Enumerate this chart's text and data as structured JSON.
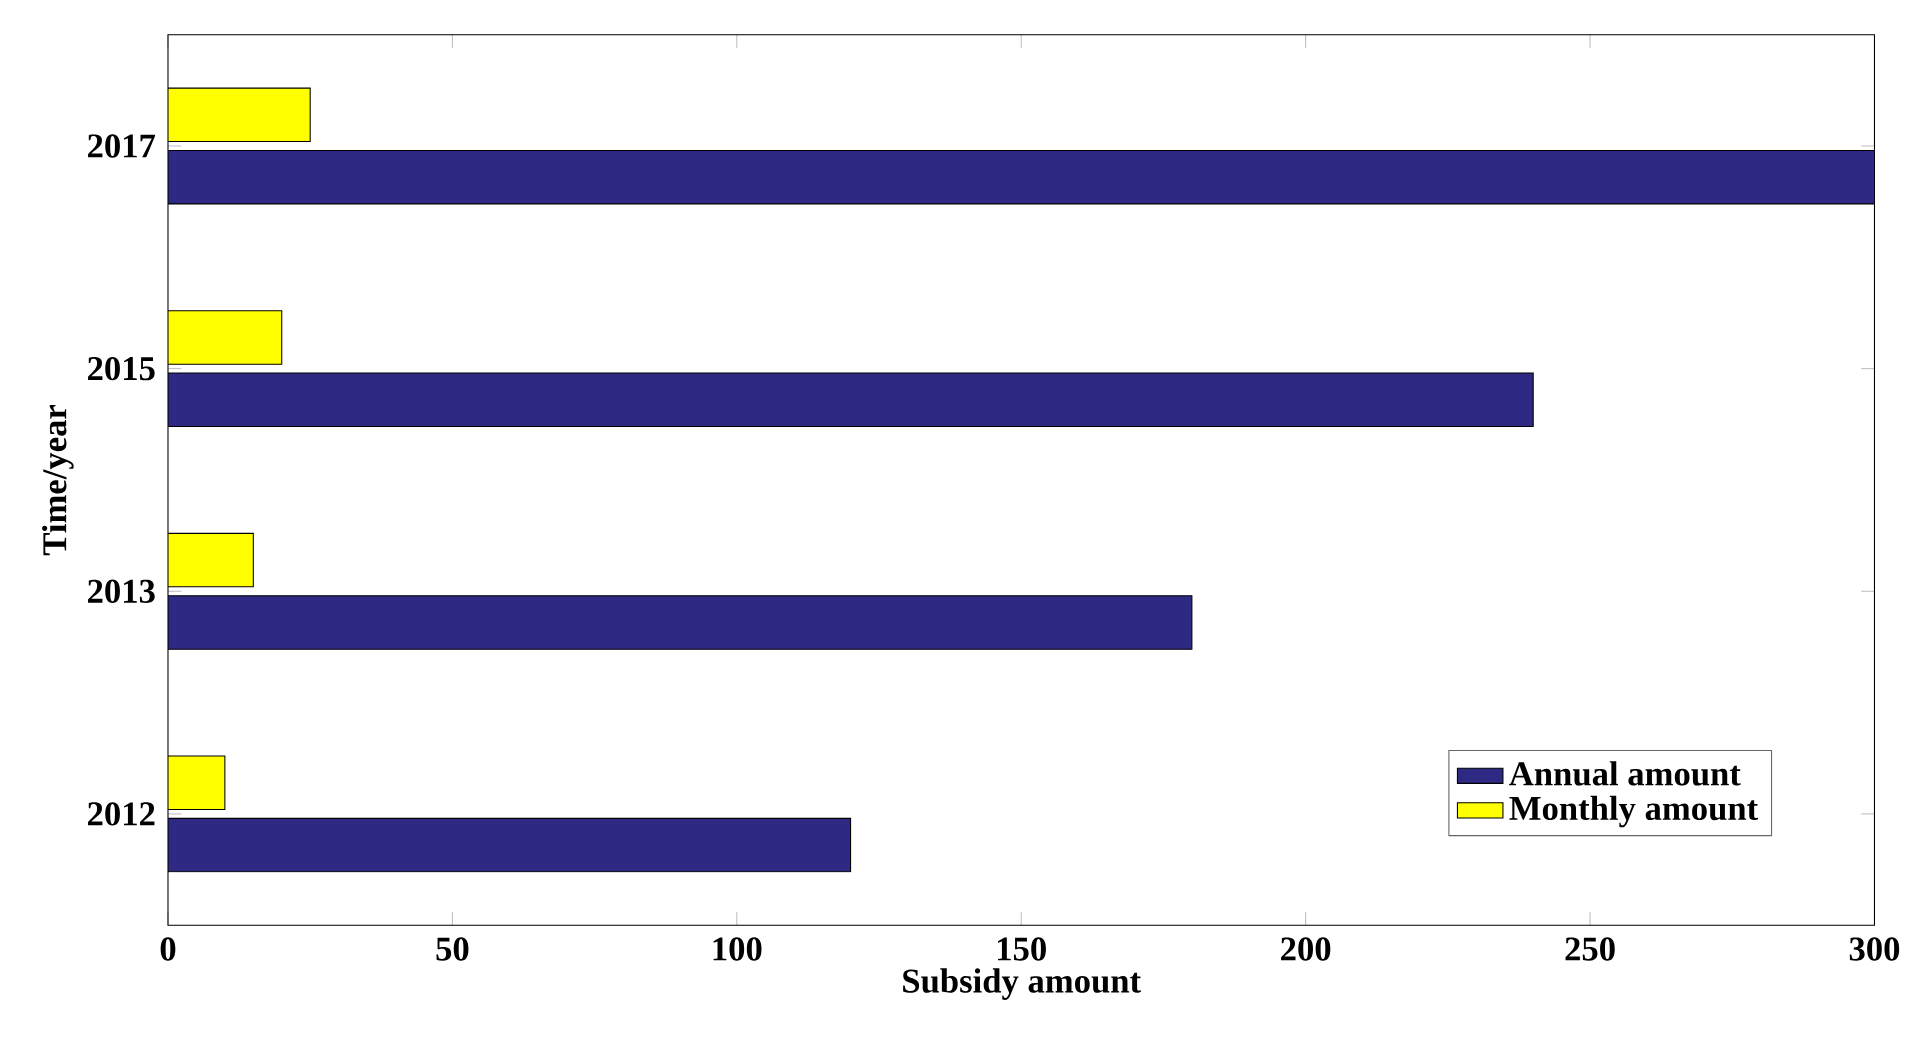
{
  "chart_data": {
    "type": "bar",
    "orientation": "horizontal",
    "xlabel": "Subsidy amount",
    "ylabel": "Time/year",
    "categories": [
      "2017",
      "2015",
      "2013",
      "2012"
    ],
    "series": [
      {
        "name": "Annual amount",
        "color": "#2e2a84",
        "values": [
          300,
          240,
          180,
          120
        ]
      },
      {
        "name": "Monthly amount",
        "color": "#ffff00",
        "values": [
          25,
          20,
          15,
          10
        ]
      }
    ],
    "xlim": [
      0,
      300
    ],
    "xticks": [
      0,
      50,
      100,
      150,
      200,
      250,
      300
    ],
    "grid": false,
    "legend": "bottom right"
  }
}
